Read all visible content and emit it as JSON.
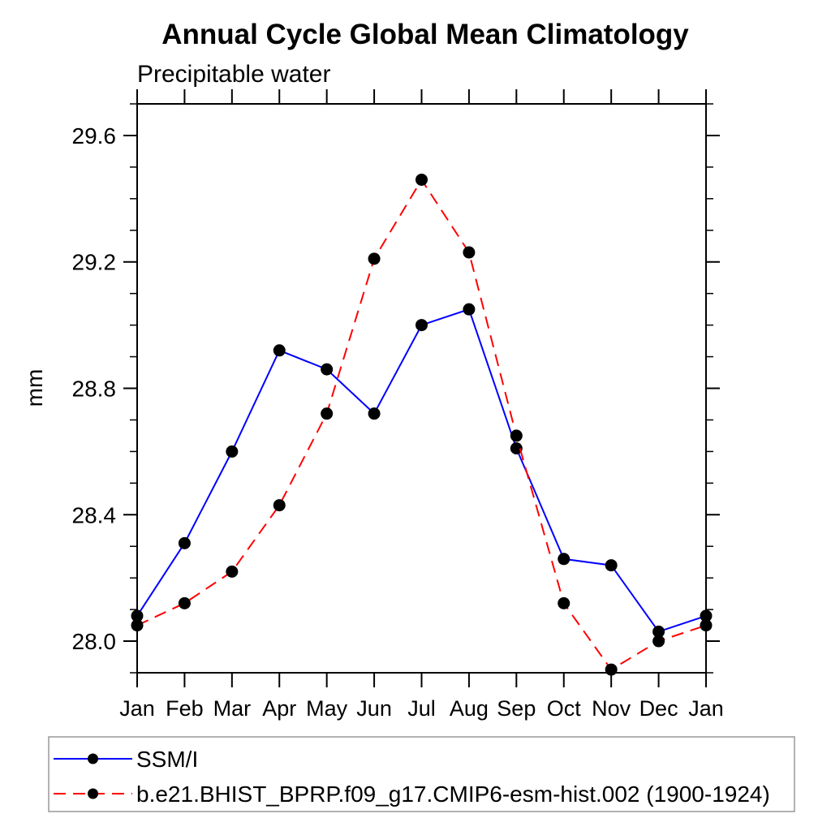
{
  "chart": {
    "title": "Annual Cycle Global Mean Climatology",
    "subtitle": "Precipitable water",
    "ylabel": "mm"
  },
  "chart_data": {
    "type": "line",
    "title": "Annual Cycle Global Mean Climatology",
    "subtitle": "Precipitable water",
    "xlabel": "",
    "ylabel": "mm",
    "x_tick_labels": [
      "Jan",
      "Feb",
      "Mar",
      "Apr",
      "May",
      "Jun",
      "Jul",
      "Aug",
      "Sep",
      "Oct",
      "Nov",
      "Dec",
      "Jan"
    ],
    "ylim": [
      27.9,
      29.7
    ],
    "y_tick_labels": [
      "28.0",
      "28.4",
      "28.8",
      "29.2",
      "29.6"
    ],
    "y_minor_step": 0.1,
    "grid": false,
    "legend_position": "bottom-left-box",
    "axis_color": "#000000",
    "text_color": "#000000",
    "background_color": "#ffffff",
    "legend_border_color": "#999999",
    "series": [
      {
        "name": "SSM/I",
        "line_color": "#0000ff",
        "line_style": "solid",
        "marker": "filled-circle",
        "marker_color": "#000000",
        "values": [
          28.08,
          28.31,
          28.6,
          28.92,
          28.86,
          28.72,
          29.0,
          29.05,
          28.61,
          28.26,
          28.24,
          28.03,
          28.08
        ]
      },
      {
        "name": "b.e21.BHIST_BPRP.f09_g17.CMIP6-esm-hist.002 (1900-1924)",
        "line_color": "#ff0000",
        "line_style": "dashed",
        "marker": "filled-circle",
        "marker_color": "#000000",
        "values": [
          28.05,
          28.12,
          28.22,
          28.43,
          28.72,
          29.21,
          29.46,
          29.23,
          28.65,
          28.12,
          27.91,
          28.0,
          28.05
        ]
      }
    ]
  }
}
